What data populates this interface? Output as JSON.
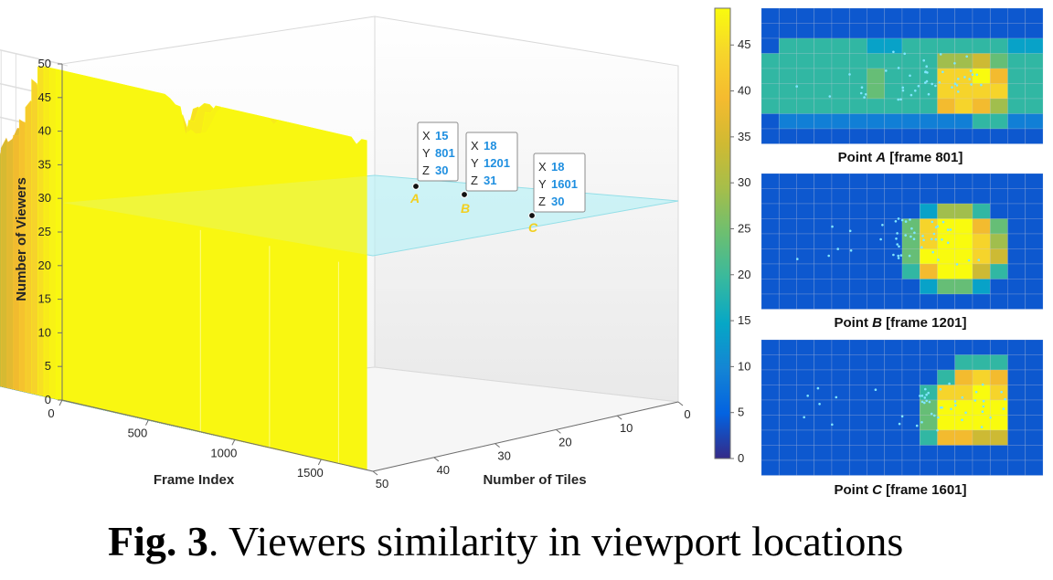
{
  "caption": {
    "prefix": "Fig. 3",
    "text": ". Viewers similarity in viewport locations"
  },
  "chart_data": [
    {
      "type": "surface3d",
      "xlabel": "Frame Index",
      "ylabel": "Number of Tiles",
      "zlabel": "Number of Viewers",
      "x_ticks": [
        "0",
        "500",
        "1000",
        "1500"
      ],
      "y_ticks": [
        "0",
        "10",
        "20",
        "30",
        "40",
        "50"
      ],
      "z_ticks": [
        "0",
        "5",
        "10",
        "15",
        "20",
        "25",
        "30",
        "35",
        "40",
        "45",
        "50"
      ],
      "xlim": [
        0,
        1800
      ],
      "ylim": [
        0,
        50
      ],
      "zlim": [
        0,
        50
      ],
      "threshold_plane_z": 30,
      "colormap": "parula",
      "data_tips": [
        {
          "label": "A",
          "x": 15,
          "y": 801,
          "z": 30
        },
        {
          "label": "B",
          "x": 18,
          "y": 1201,
          "z": 31
        },
        {
          "label": "C",
          "x": 18,
          "y": 1601,
          "z": 30
        }
      ]
    },
    {
      "type": "colorbar",
      "ticks": [
        "0",
        "5",
        "10",
        "15",
        "20",
        "25",
        "30",
        "35",
        "40",
        "45"
      ],
      "range": [
        0,
        49
      ]
    },
    {
      "type": "heatmap",
      "caption_pre": "Point ",
      "caption_letter": "A",
      "caption_post": " [frame 801]",
      "grid": [
        "0000000000000000",
        "0000000000000000",
        "0333332233333322",
        "3333333333556433",
        "3333334333889733",
        "3333334333888833",
        "3333333333787533",
        "0111111111113311",
        "0000000000000000"
      ]
    },
    {
      "type": "heatmap",
      "caption_pre": "Point ",
      "caption_letter": "B",
      "caption_post": " [frame 1201]",
      "grid": [
        "0000000000000000",
        "0000000000000000",
        "0000000002553000",
        "0000000048997400",
        "0000000048998500",
        "0000000049998600",
        "0000000037996300",
        "0000000002442000",
        "0000000000000000"
      ]
    },
    {
      "type": "heatmap",
      "caption_pre": "Point ",
      "caption_letter": "C",
      "caption_post": " [frame 1601]",
      "grid": [
        "0000000000000000",
        "0000000000033300",
        "0000000000378700",
        "0000000003889800",
        "0000000004999900",
        "0000000004999900",
        "0000000003776600",
        "0000000000000000",
        "0000000000000000"
      ]
    }
  ]
}
